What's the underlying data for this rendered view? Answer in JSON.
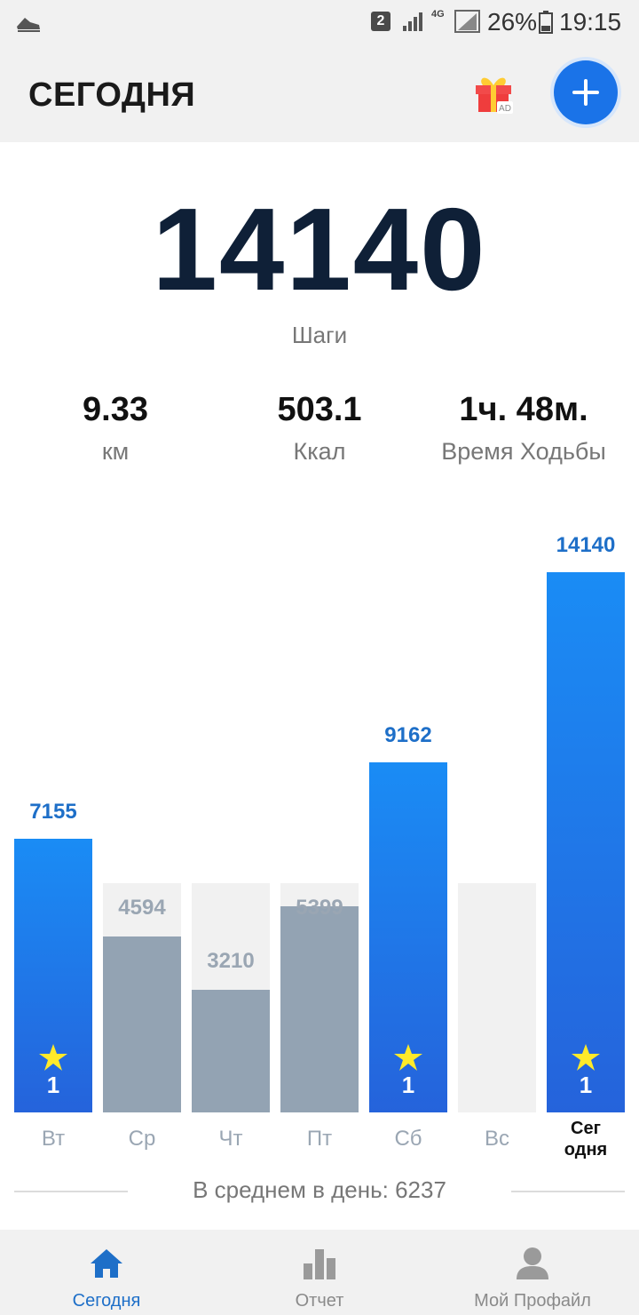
{
  "status_bar": {
    "sim_slot": "2",
    "network": "4G",
    "battery_percent": "26%",
    "time": "19:15"
  },
  "header": {
    "title": "СЕГОДНЯ",
    "gift_badge": "AD",
    "add_icon": "plus-icon",
    "accent_color": "#1a73e8"
  },
  "summary": {
    "steps_value": "14140",
    "steps_label": "Шаги",
    "metrics": [
      {
        "value": "9.33",
        "label": "км"
      },
      {
        "value": "503.1",
        "label": "Ккал"
      },
      {
        "value": "1ч. 48м.",
        "label": "Время Ходьбы"
      }
    ]
  },
  "chart_data": {
    "type": "bar",
    "goal": 6000,
    "categories": [
      "Вт",
      "Ср",
      "Чт",
      "Пт",
      "Сб",
      "Вс",
      "Сег одня"
    ],
    "values": [
      7155,
      4594,
      3210,
      5399,
      9162,
      0,
      14140
    ],
    "value_labels": [
      "7155",
      "4594",
      "3210",
      "5399",
      "9162",
      "",
      "14140"
    ],
    "goal_reached": [
      true,
      false,
      false,
      false,
      true,
      false,
      true
    ],
    "star_counts": [
      "1",
      "",
      "",
      "",
      "1",
      "",
      "1"
    ],
    "today_label_lines": [
      "Сег",
      "одня"
    ],
    "colors": {
      "goal": "#1a8cf5",
      "below_goal": "#93a3b3",
      "track": "#f1f1f1"
    }
  },
  "average": {
    "text": "В среднем в день: 6237"
  },
  "bottom_nav": {
    "items": [
      {
        "label": "Сегодня",
        "icon": "home-icon",
        "active": true
      },
      {
        "label": "Отчет",
        "icon": "bar-chart-icon",
        "active": false
      },
      {
        "label": "Мой Профайл",
        "icon": "person-icon",
        "active": false
      }
    ]
  }
}
